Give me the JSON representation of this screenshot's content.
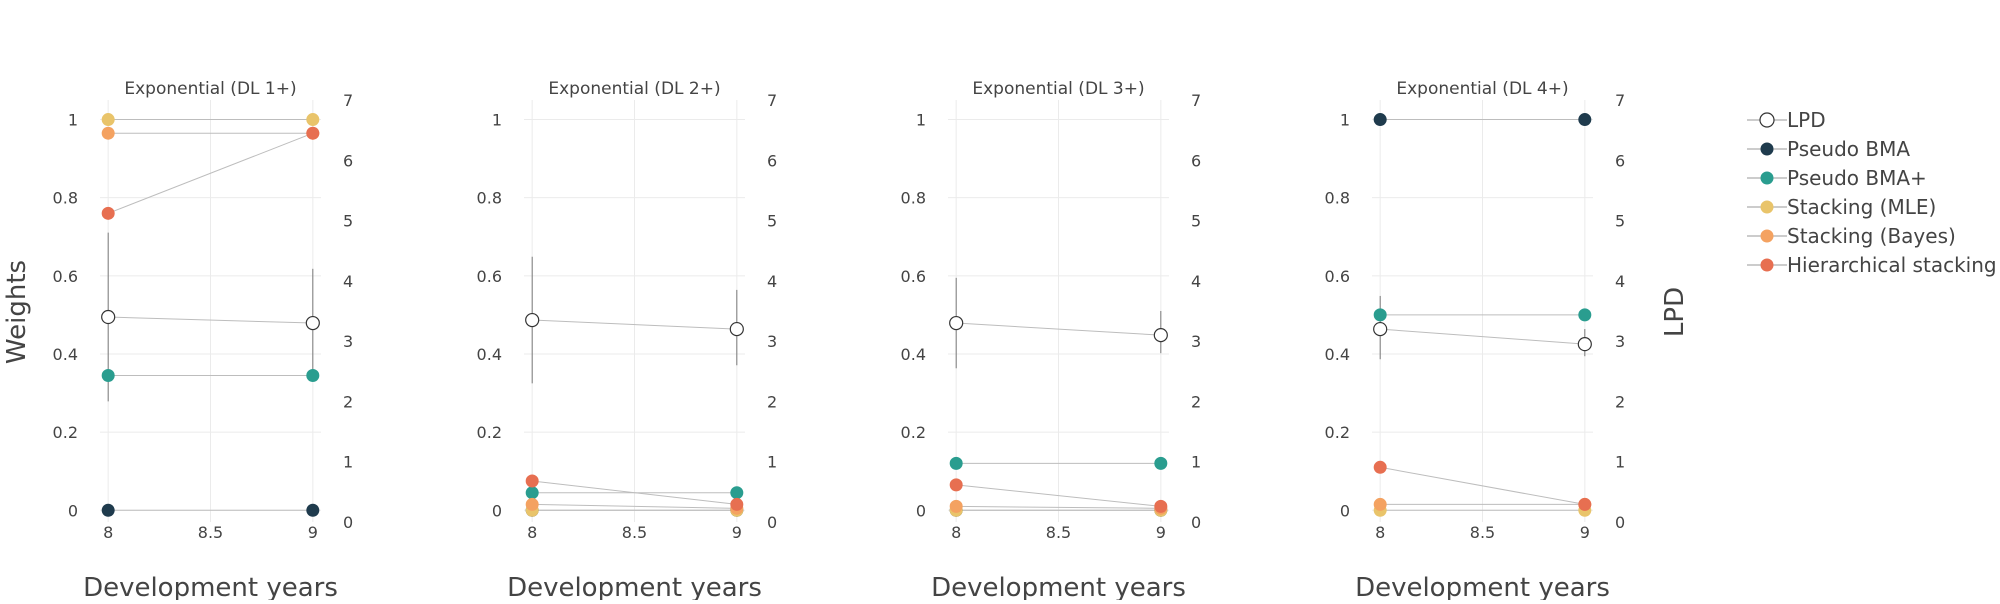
{
  "chart_data": {
    "type": "scatter",
    "y_axis_left_label": "Weights",
    "y_axis_right_label": "LPD",
    "x_axis_label": "Development years",
    "x_ticks": [
      "8",
      "8.5",
      "9"
    ],
    "y_left_ticks": [
      "0",
      "0.2",
      "0.4",
      "0.6",
      "0.8",
      "1"
    ],
    "y_right_ticks": [
      "0",
      "1",
      "2",
      "3",
      "4",
      "5",
      "6",
      "7"
    ],
    "xlim": [
      7.96,
      9.04
    ],
    "ylim_left": [
      -0.03,
      1.05
    ],
    "ylim_right": [
      0,
      7
    ],
    "grid": true,
    "legend_position": "right",
    "series_styles": [
      {
        "name": "LPD",
        "color": "#ffffff",
        "stroke": "#333333",
        "open_marker": true
      },
      {
        "name": "Pseudo BMA",
        "color": "#1f3b4d"
      },
      {
        "name": "Pseudo BMA+",
        "color": "#2a9d8f"
      },
      {
        "name": "Stacking (MLE)",
        "color": "#e9c46a"
      },
      {
        "name": "Stacking (Bayes)",
        "color": "#f4a261"
      },
      {
        "name": "Hierarchical stacking",
        "color": "#e76f51"
      }
    ],
    "panels": [
      {
        "title": "Exponential (DL 1+)",
        "x": [
          8,
          9
        ],
        "lpd": {
          "values": [
            3.4,
            3.3
          ],
          "lower": [
            2.0,
            2.5
          ],
          "upper": [
            4.8,
            4.2
          ]
        },
        "series": [
          {
            "name": "Pseudo BMA",
            "values": [
              0,
              0
            ]
          },
          {
            "name": "Pseudo BMA+",
            "values": [
              0.345,
              0.345
            ]
          },
          {
            "name": "Stacking (MLE)",
            "values": [
              1,
              1
            ]
          },
          {
            "name": "Stacking (Bayes)",
            "values": [
              0.965,
              0.965
            ]
          },
          {
            "name": "Hierarchical stacking",
            "values": [
              0.76,
              0.965
            ]
          }
        ]
      },
      {
        "title": "Exponential (DL 2+)",
        "x": [
          8,
          9
        ],
        "lpd": {
          "values": [
            3.35,
            3.2
          ],
          "lower": [
            2.3,
            2.6
          ],
          "upper": [
            4.4,
            3.85
          ]
        },
        "series": [
          {
            "name": "Pseudo BMA",
            "values": [
              0,
              0
            ]
          },
          {
            "name": "Pseudo BMA+",
            "values": [
              0.045,
              0.045
            ]
          },
          {
            "name": "Stacking (MLE)",
            "values": [
              0,
              0
            ]
          },
          {
            "name": "Stacking (Bayes)",
            "values": [
              0.015,
              0.005
            ]
          },
          {
            "name": "Hierarchical stacking",
            "values": [
              0.075,
              0.015
            ]
          }
        ]
      },
      {
        "title": "Exponential (DL 3+)",
        "x": [
          8,
          9
        ],
        "lpd": {
          "values": [
            3.3,
            3.1
          ],
          "lower": [
            2.55,
            2.8
          ],
          "upper": [
            4.05,
            3.5
          ]
        },
        "series": [
          {
            "name": "Pseudo BMA",
            "values": [
              0,
              0
            ]
          },
          {
            "name": "Pseudo BMA+",
            "values": [
              0.12,
              0.12
            ]
          },
          {
            "name": "Stacking (MLE)",
            "values": [
              0,
              0
            ]
          },
          {
            "name": "Stacking (Bayes)",
            "values": [
              0.01,
              0.005
            ]
          },
          {
            "name": "Hierarchical stacking",
            "values": [
              0.065,
              0.01
            ]
          }
        ]
      },
      {
        "title": "Exponential (DL 4+)",
        "x": [
          8,
          9
        ],
        "lpd": {
          "values": [
            3.2,
            2.95
          ],
          "lower": [
            2.7,
            2.75
          ],
          "upper": [
            3.75,
            3.2
          ]
        },
        "series": [
          {
            "name": "Pseudo BMA",
            "values": [
              1,
              1
            ]
          },
          {
            "name": "Pseudo BMA+",
            "values": [
              0.5,
              0.5
            ]
          },
          {
            "name": "Stacking (MLE)",
            "values": [
              0,
              0
            ]
          },
          {
            "name": "Stacking (Bayes)",
            "values": [
              0.015,
              0.015
            ]
          },
          {
            "name": "Hierarchical stacking",
            "values": [
              0.11,
              0.015
            ]
          }
        ]
      }
    ]
  }
}
